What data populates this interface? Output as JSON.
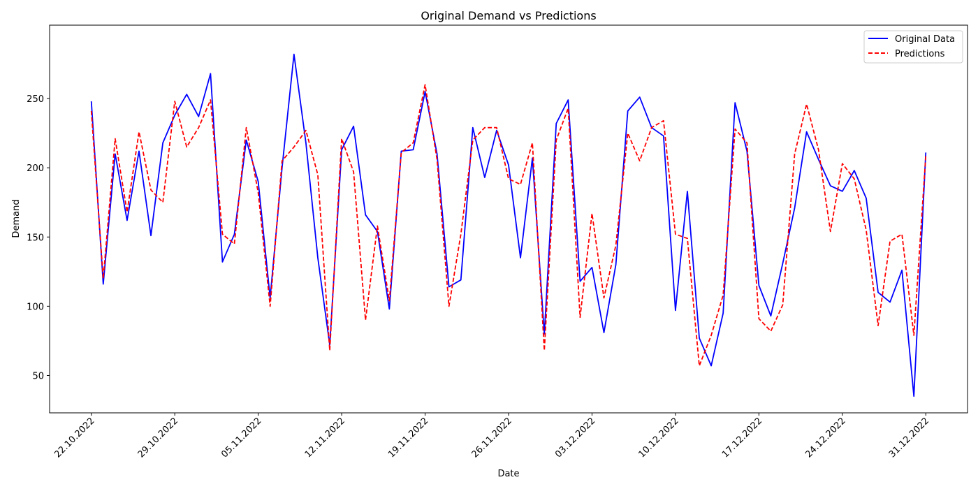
{
  "chart_data": {
    "type": "line",
    "title": "Original Demand vs Predictions",
    "xlabel": "Date",
    "ylabel": "Demand",
    "x_start": "22.10.2022",
    "x_end": "31.12.2022",
    "xlim": [
      "2022-10-18.5",
      "2023-01-03.5"
    ],
    "ylim": [
      23,
      303
    ],
    "x_ticks": [
      "22.10.2022",
      "29.10.2022",
      "05.11.2022",
      "12.11.2022",
      "19.11.2022",
      "26.11.2022",
      "03.12.2022",
      "10.12.2022",
      "17.12.2022",
      "24.12.2022",
      "31.12.2022"
    ],
    "y_ticks": [
      50,
      100,
      150,
      200,
      250
    ],
    "grid": false,
    "legend_position": "top-right",
    "series": [
      {
        "name": "Original Data",
        "color": "#0000ff",
        "style": "solid",
        "values": [
          248,
          116,
          210,
          162,
          212,
          151,
          218,
          238,
          253,
          237,
          268,
          132,
          152,
          220,
          190,
          106,
          200,
          282,
          218,
          135,
          72,
          213,
          230,
          166,
          154,
          98,
          212,
          213,
          255,
          210,
          114,
          119,
          229,
          193,
          227,
          202,
          135,
          207,
          80,
          232,
          249,
          118,
          128,
          81,
          130,
          241,
          251,
          229,
          223,
          97,
          183,
          77,
          57,
          95,
          247,
          212,
          115,
          93,
          131,
          171,
          226,
          206,
          187,
          183,
          198,
          178,
          110,
          103,
          126,
          35,
          211
        ]
      },
      {
        "name": "Predictions",
        "color": "#ff0000",
        "style": "dashed",
        "values": [
          241,
          120,
          221,
          168,
          226,
          184,
          175,
          248,
          215,
          229,
          249,
          152,
          145,
          229,
          182,
          100,
          205,
          215,
          227,
          195,
          68,
          221,
          197,
          90,
          158,
          104,
          211,
          218,
          260,
          206,
          100,
          152,
          220,
          229,
          229,
          192,
          188,
          218,
          68,
          220,
          243,
          92,
          167,
          106,
          144,
          225,
          205,
          229,
          234,
          152,
          149,
          57,
          79,
          108,
          228,
          218,
          91,
          82,
          101,
          210,
          246,
          213,
          154,
          203,
          192,
          155,
          86,
          147,
          152,
          79,
          209
        ]
      }
    ]
  }
}
